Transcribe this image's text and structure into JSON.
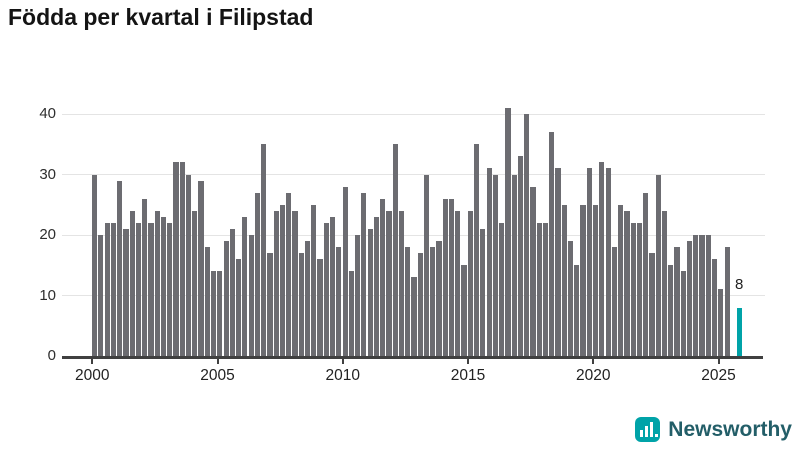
{
  "title": "Födda per kvartal i Filipstad",
  "y_axis": {
    "ticks": [
      0,
      10,
      20,
      30,
      40
    ]
  },
  "x_axis": {
    "labels": [
      "2000",
      "2005",
      "2010",
      "2015",
      "2020",
      "2025"
    ]
  },
  "annotation": {
    "value_label": "8"
  },
  "branding": {
    "name": "Newsworthy"
  },
  "colors": {
    "bar": "#6c6c71",
    "highlight": "#00a3a8",
    "gridline": "#e4e4e4",
    "axis": "#404040",
    "title": "#141414",
    "tick_label": "#2e2e2e",
    "brand_text": "#235e68",
    "brand_icon": "#00a3a8",
    "annotation_text": "#222222"
  },
  "chart_data": {
    "type": "bar",
    "title": "Födda per kvartal i Filipstad",
    "xlabel": "",
    "ylabel": "",
    "ylim": [
      0,
      41
    ],
    "grid": true,
    "legend": "none",
    "x_start_year": 2000,
    "x_start_quarter": 1,
    "categories_note": "values are consecutive quarters from 2000Q1; null = empty slot before highlighted latest bar",
    "quarters": [
      30,
      20,
      22,
      22,
      29,
      21,
      24,
      22,
      26,
      22,
      24,
      23,
      22,
      32,
      32,
      30,
      24,
      29,
      18,
      14,
      14,
      19,
      21,
      16,
      23,
      20,
      27,
      35,
      17,
      24,
      25,
      27,
      24,
      17,
      19,
      25,
      16,
      22,
      23,
      18,
      28,
      14,
      20,
      27,
      21,
      23,
      26,
      24,
      35,
      24,
      18,
      13,
      17,
      30,
      18,
      19,
      26,
      26,
      24,
      15,
      24,
      35,
      21,
      31,
      30,
      22,
      41,
      30,
      33,
      40,
      28,
      22,
      22,
      37,
      31,
      25,
      19,
      15,
      25,
      31,
      25,
      32,
      31,
      18,
      25,
      24,
      22,
      22,
      27,
      17,
      30,
      24,
      15,
      18,
      14,
      19,
      20,
      20,
      20,
      16,
      11,
      18,
      null,
      8
    ],
    "highlight": {
      "index": 103,
      "value": 8,
      "label": "8"
    }
  }
}
